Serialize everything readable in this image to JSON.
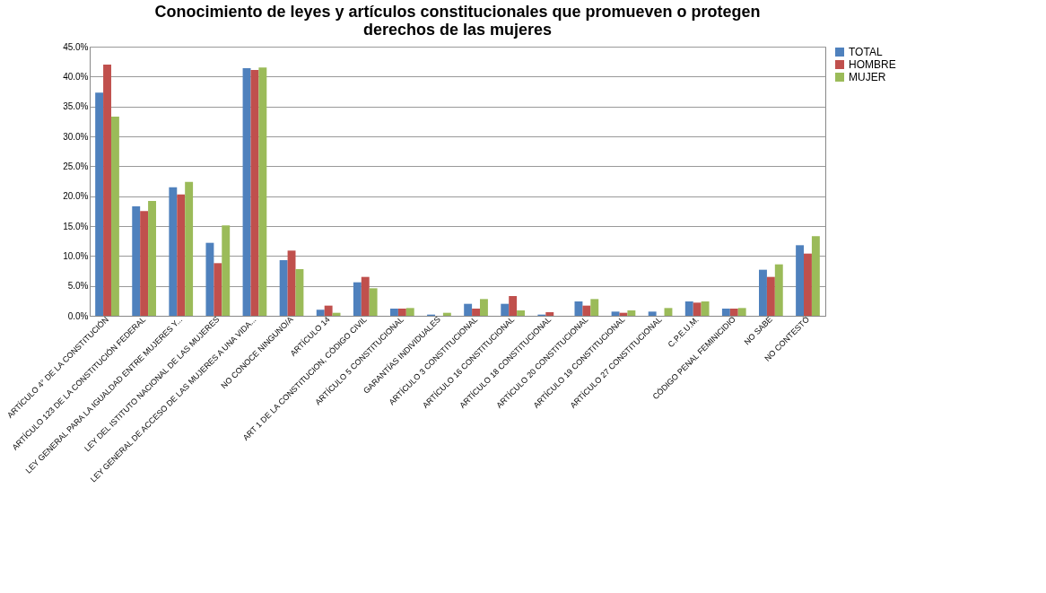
{
  "chart_data": {
    "type": "bar",
    "title": "Conocimiento de leyes y artículos constitucionales que promueven o protegen\nderechos de las mujeres",
    "categories": [
      "ARTÍCULO 4° DE LA CONSTITUCIÓN",
      "ARTÍCULO 123 DE LA CONSTITUCIÓN  FEDERAL",
      "LEY GENERAL  PARA LA IGUALDAD ENTRE  MUJERES Y...",
      "LEY DEL ISTITUTO  NACIONAL DE LAS MUJERES",
      "LEY GENERAL  DE ACCESO DE LAS MUJERES  A UNA VIDA...",
      "NO CONOCE NINGUNO/A",
      "ARTÍCULO 14",
      "ART 1 DE LA CONSTITUCION,  CÓDIGO CIVIL",
      "ARTÍCULO 5 CONSTITUCIONAL",
      "GARANTÍAS INDIVIDUALES",
      "ARTÍCULO 3 CONSTITUCIONAL",
      "ARTÍCULO 16 CONSTITUCIONAL",
      "ARTÍCULO 18 CONSTITUCIONAL",
      "ARTÍCULO 20 CONSTITUCIONAL",
      "ARTÍCULO 19 CONSTITUCIONAL",
      "ARTÍCULO 27 CONSTITUCIONAL",
      "C.P.E.U.M.",
      "CÓDIGO PENAL FEMINICIDIO",
      "NO SABE",
      "NO CONTESTÓ"
    ],
    "series": [
      {
        "name": "TOTAL",
        "color": "#4f81bd",
        "values": [
          37.3,
          18.3,
          21.5,
          12.2,
          41.4,
          9.3,
          1.0,
          5.6,
          1.2,
          0.2,
          2.0,
          2.0,
          0.2,
          2.4,
          0.7,
          0.7,
          2.4,
          1.2,
          7.7,
          11.8
        ]
      },
      {
        "name": "HOMBRE",
        "color": "#c0504d",
        "values": [
          42.0,
          17.5,
          20.3,
          8.8,
          41.1,
          10.9,
          1.7,
          6.5,
          1.2,
          null,
          1.2,
          3.3,
          0.6,
          1.7,
          0.5,
          null,
          2.2,
          1.2,
          6.5,
          10.4
        ]
      },
      {
        "name": "MUJER",
        "color": "#9bbb59",
        "values": [
          33.3,
          19.2,
          22.4,
          15.1,
          41.5,
          7.8,
          0.5,
          4.6,
          1.3,
          0.5,
          2.8,
          0.9,
          null,
          2.8,
          0.9,
          1.3,
          2.4,
          1.3,
          8.6,
          13.3
        ]
      }
    ],
    "ylim": [
      0,
      45
    ],
    "yticks": [
      {
        "value": 0,
        "label": "0.0%"
      },
      {
        "value": 5,
        "label": "5.0%"
      },
      {
        "value": 10,
        "label": "10.0%"
      },
      {
        "value": 15,
        "label": "15.0%"
      },
      {
        "value": 20,
        "label": "20.0%"
      },
      {
        "value": 25,
        "label": "25.0%"
      },
      {
        "value": 30,
        "label": "30.0%"
      },
      {
        "value": 35,
        "label": "35.0%"
      },
      {
        "value": 40,
        "label": "40.0%"
      },
      {
        "value": 45,
        "label": "45.0%"
      }
    ],
    "grid": "y",
    "legend": "right"
  }
}
